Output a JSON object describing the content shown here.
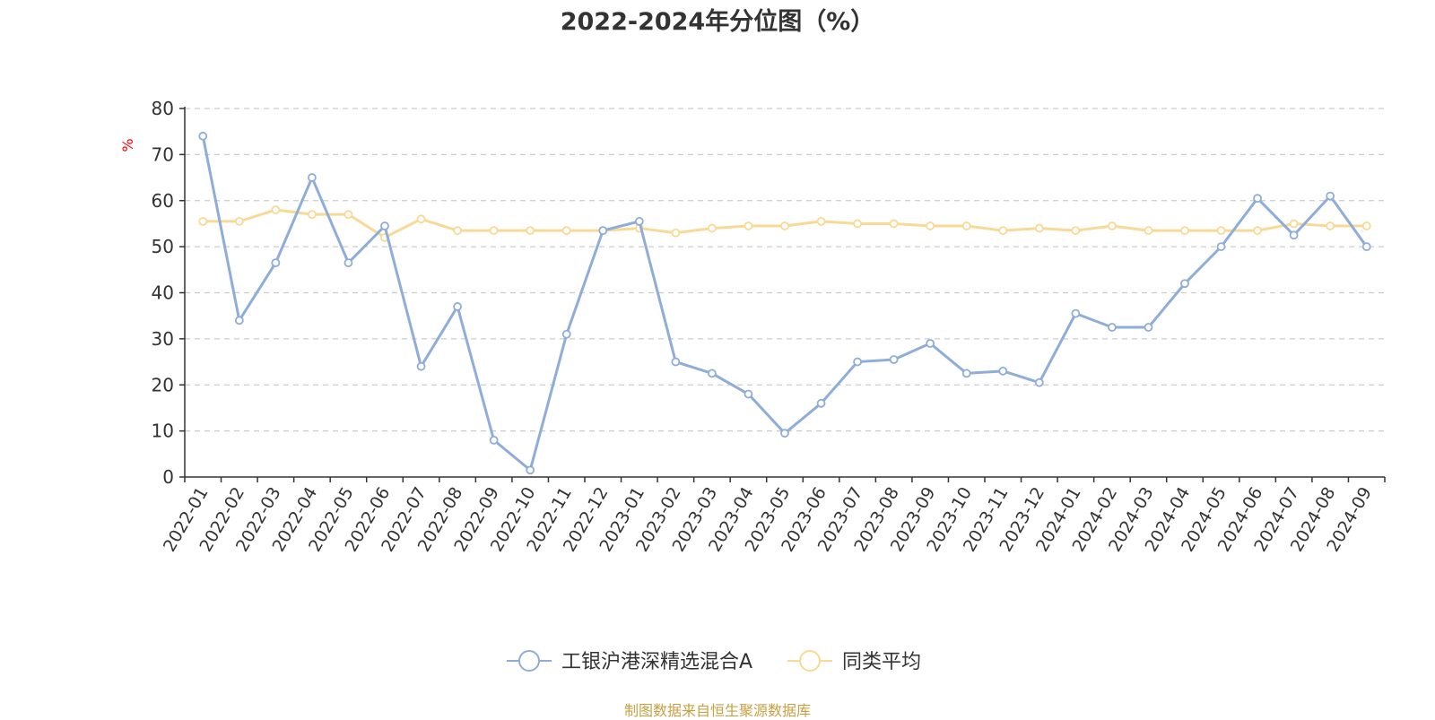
{
  "chart_data": {
    "type": "line",
    "title": "2022-2024年分位图（%）",
    "ylabel": "%",
    "ylim": [
      0,
      80
    ],
    "yticks": [
      0,
      10,
      20,
      30,
      40,
      50,
      60,
      70,
      80
    ],
    "grid": true,
    "legend_position": "bottom-center",
    "categories": [
      "2022-01",
      "2022-02",
      "2022-03",
      "2022-04",
      "2022-05",
      "2022-06",
      "2022-07",
      "2022-08",
      "2022-09",
      "2022-10",
      "2022-11",
      "2022-12",
      "2023-01",
      "2023-02",
      "2023-03",
      "2023-04",
      "2023-05",
      "2023-06",
      "2023-07",
      "2023-08",
      "2023-09",
      "2023-10",
      "2023-11",
      "2023-12",
      "2024-01",
      "2024-02",
      "2024-03",
      "2024-04",
      "2024-05",
      "2024-06",
      "2024-07",
      "2024-08",
      "2024-09"
    ],
    "series": [
      {
        "name": "工银沪港深精选混合A",
        "color": "#8eadd8",
        "values": [
          74,
          34,
          46.5,
          65,
          46.5,
          54.5,
          24,
          37,
          8,
          1.5,
          31,
          53.5,
          55.5,
          25,
          22.5,
          18,
          9.5,
          16,
          25,
          25.5,
          29,
          22.5,
          23,
          20.5,
          35.5,
          32.5,
          32.5,
          42,
          50,
          60.5,
          52.5,
          61,
          50
        ]
      },
      {
        "name": "同类平均",
        "color": "#f8d995",
        "values": [
          55.5,
          55.5,
          58,
          57,
          57,
          52,
          56,
          53.5,
          53.5,
          53.5,
          53.5,
          53.5,
          54,
          53,
          54,
          54.5,
          54.5,
          55.5,
          55,
          55,
          54.5,
          54.5,
          53.5,
          54,
          53.5,
          54.5,
          53.5,
          53.5,
          53.5,
          53.5,
          55,
          54.5,
          54.5
        ]
      }
    ]
  },
  "source_note": "制图数据来自恒生聚源数据库"
}
